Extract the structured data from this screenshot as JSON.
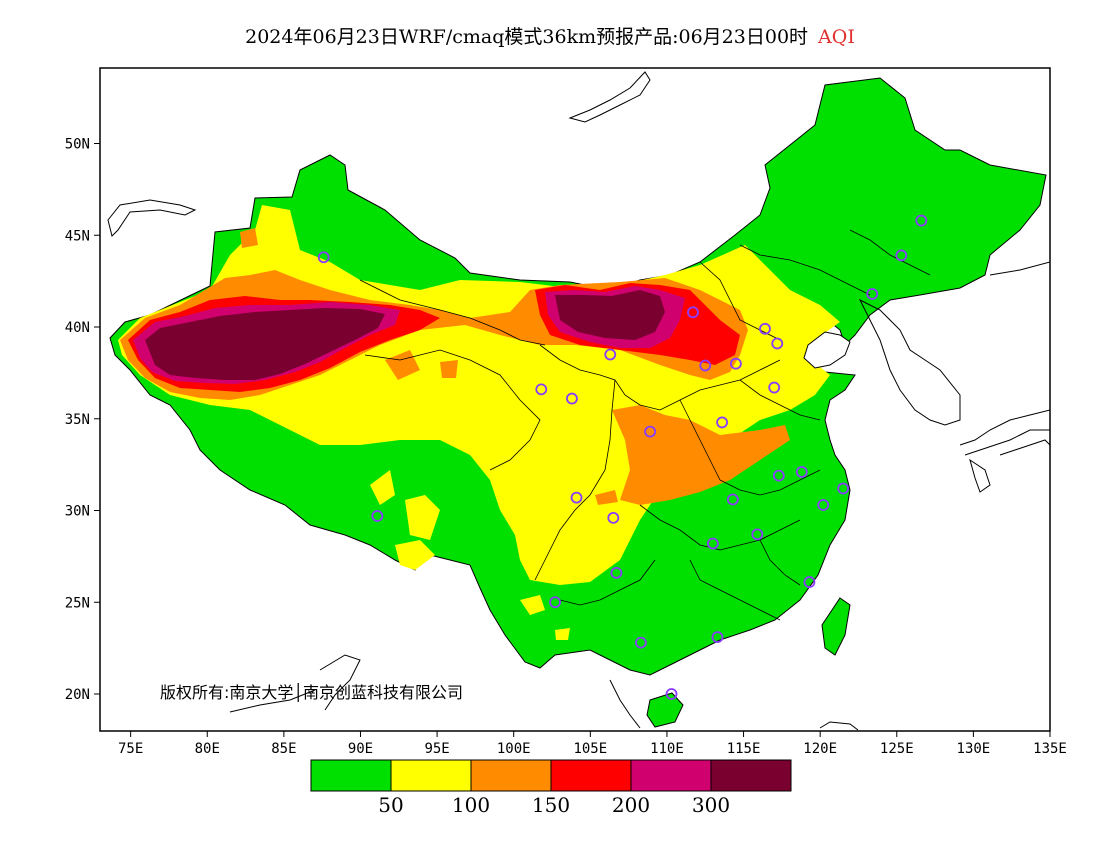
{
  "title": {
    "main": "2024年06月23日WRF/cmaq模式36km预报产品:06月23日00时",
    "variable": "AQI",
    "variable_color": "#e03030"
  },
  "axes": {
    "lat_labels": [
      "50N",
      "45N",
      "40N",
      "35N",
      "30N",
      "25N",
      "20N"
    ],
    "lat_values": [
      50,
      45,
      40,
      35,
      30,
      25,
      20
    ],
    "lon_labels": [
      "75E",
      "80E",
      "85E",
      "90E",
      "95E",
      "100E",
      "105E",
      "110E",
      "115E",
      "120E",
      "125E",
      "130E",
      "135E"
    ],
    "lon_values": [
      75,
      80,
      85,
      90,
      95,
      100,
      105,
      110,
      115,
      120,
      125,
      130,
      135
    ]
  },
  "copyright": "版权所有:南京大学│南京创蓝科技有限公司",
  "legend": {
    "colors": [
      "#00e000",
      "#ffff00",
      "#ff8c00",
      "#ff0000",
      "#d0006e",
      "#7a0030"
    ],
    "labels": [
      "50",
      "100",
      "150",
      "200",
      "300"
    ]
  },
  "stations": [
    {
      "lon": 87.6,
      "lat": 43.8
    },
    {
      "lon": 126.6,
      "lat": 45.8
    },
    {
      "lon": 125.3,
      "lat": 43.9
    },
    {
      "lon": 123.4,
      "lat": 41.8
    },
    {
      "lon": 111.7,
      "lat": 40.8
    },
    {
      "lon": 116.4,
      "lat": 39.9
    },
    {
      "lon": 117.2,
      "lat": 39.1
    },
    {
      "lon": 114.5,
      "lat": 38.0
    },
    {
      "lon": 112.5,
      "lat": 37.9
    },
    {
      "lon": 106.3,
      "lat": 38.5
    },
    {
      "lon": 103.8,
      "lat": 36.1
    },
    {
      "lon": 101.8,
      "lat": 36.6
    },
    {
      "lon": 117.0,
      "lat": 36.7
    },
    {
      "lon": 108.9,
      "lat": 34.3
    },
    {
      "lon": 113.6,
      "lat": 34.8
    },
    {
      "lon": 104.1,
      "lat": 30.7
    },
    {
      "lon": 106.5,
      "lat": 29.6
    },
    {
      "lon": 114.3,
      "lat": 30.6
    },
    {
      "lon": 117.3,
      "lat": 31.9
    },
    {
      "lon": 118.8,
      "lat": 32.1
    },
    {
      "lon": 121.5,
      "lat": 31.2
    },
    {
      "lon": 120.2,
      "lat": 30.3
    },
    {
      "lon": 115.9,
      "lat": 28.7
    },
    {
      "lon": 113.0,
      "lat": 28.2
    },
    {
      "lon": 106.7,
      "lat": 26.6
    },
    {
      "lon": 102.7,
      "lat": 25.0
    },
    {
      "lon": 119.3,
      "lat": 26.1
    },
    {
      "lon": 113.3,
      "lat": 23.1
    },
    {
      "lon": 108.3,
      "lat": 22.8
    },
    {
      "lon": 110.3,
      "lat": 20.0
    },
    {
      "lon": 91.1,
      "lat": 29.7
    }
  ]
}
